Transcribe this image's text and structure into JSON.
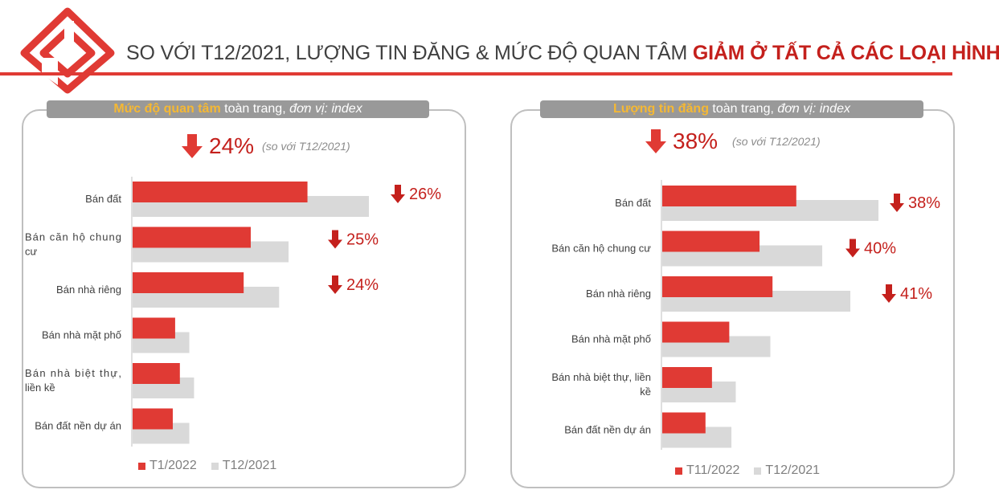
{
  "header": {
    "title_prefix": "SO VỚI T12/2021, LƯỢNG TIN ĐĂNG & MỨC ĐỘ QUAN TÂM ",
    "title_highlight": "GIẢM Ở TẤT CẢ CÁC LOẠI HÌNH"
  },
  "colors": {
    "accent": "#e03a34",
    "current": "#e03a34",
    "previous": "#d9d9d9",
    "highlight": "#c4201c",
    "pill": "#999999",
    "pill_accent": "#f5b833"
  },
  "icons": {
    "logo": "house-logo-icon",
    "down": "down-arrow-icon"
  },
  "left_panel": {
    "pill": {
      "accent": "Mức độ quan tâm",
      "middle": " toàn trang, ",
      "italic": "đơn vị: index"
    },
    "overall_change": "24%",
    "compare_note": "(so với T12/2021)",
    "legend": [
      "T1/2022",
      "T12/2021"
    ]
  },
  "right_panel": {
    "pill": {
      "accent": "Lượng tin đăng",
      "middle": " toàn trang, ",
      "italic": "đơn vị: index"
    },
    "overall_change": "38%",
    "compare_note": "(so với T12/2021)",
    "legend": [
      "T11/2022",
      "T12/2021"
    ]
  },
  "chart_data": [
    {
      "type": "bar",
      "orientation": "horizontal",
      "categories": [
        "Bán đất",
        "Bán căn hộ chung cư",
        "Bán nhà riêng",
        "Bán nhà mặt phố",
        "Bán nhà biệt thự, liền kề",
        "Bán đất nền dự án"
      ],
      "series": [
        {
          "name": "T1/2022",
          "values": [
            74,
            50,
            47,
            18,
            20,
            17
          ]
        },
        {
          "name": "T12/2021",
          "values": [
            100,
            66,
            62,
            24,
            26,
            24
          ]
        }
      ],
      "change_labels": [
        "26%",
        "25%",
        "24%",
        "",
        "",
        ""
      ],
      "xlim": [
        0,
        100
      ],
      "grid": false,
      "legend_position": "bottom-left"
    },
    {
      "type": "bar",
      "orientation": "horizontal",
      "categories": [
        "Bán đất",
        "Bán căn hộ chung cư",
        "Bán nhà riêng",
        "Bán nhà mặt phố",
        "Bán nhà biệt thự, liền kề",
        "Bán đất nền dự án"
      ],
      "series": [
        {
          "name": "T11/2022",
          "values": [
            62,
            45,
            51,
            31,
            23,
            20
          ]
        },
        {
          "name": "T12/2021",
          "values": [
            100,
            74,
            87,
            50,
            34,
            32
          ]
        }
      ],
      "change_labels": [
        "38%",
        "40%",
        "41%",
        "",
        "",
        ""
      ],
      "xlim": [
        0,
        100
      ],
      "grid": false,
      "legend_position": "bottom-left"
    }
  ]
}
